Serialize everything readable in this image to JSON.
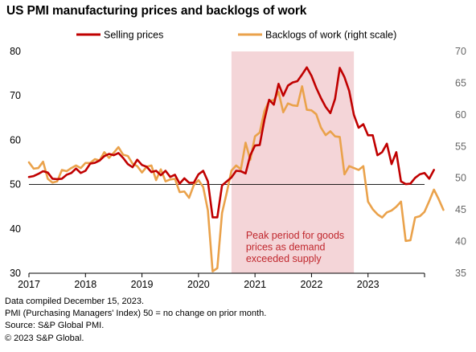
{
  "title": "US PMI manufacturing prices and backlogs of work",
  "footnotes": [
    "Data compiled December 15, 2023.",
    "PMI (Purchasing Managers' Index) 50 =  no change on prior month.",
    "Source: S&P Global PMI.",
    "© 2023 S&P Global."
  ],
  "chart_data": {
    "type": "line",
    "title": "US PMI manufacturing prices and backlogs of work",
    "x_tick_labels": [
      "2017",
      "2018",
      "2019",
      "2020",
      "2021",
      "2022",
      "2023"
    ],
    "x_tick_values": [
      2017,
      2018,
      2019,
      2020,
      2021,
      2022,
      2023
    ],
    "xlim": [
      2017.0,
      2024.0
    ],
    "left_axis": {
      "ylim": [
        30,
        80
      ],
      "ticks": [
        30,
        40,
        50,
        60,
        70,
        80
      ]
    },
    "right_axis": {
      "ylim": [
        35,
        70
      ],
      "ticks": [
        35,
        40,
        45,
        50,
        55,
        60,
        65,
        70
      ]
    },
    "reference_line": {
      "axis": "left",
      "value": 50
    },
    "grid": false,
    "legend_position": "top",
    "shaded_region": {
      "x_range": [
        2020.5833,
        2022.75
      ],
      "label_lines": [
        "Peak period for goods",
        "prices as demand",
        "exceeded supply"
      ],
      "fill": "#f4d5d8",
      "text_color": "#c0272d"
    },
    "series": [
      {
        "name": "Selling prices",
        "axis": "left",
        "color": "#c00000",
        "start": 2017.0,
        "step_months": 1,
        "values": [
          51.7,
          51.9,
          52.4,
          53.0,
          52.7,
          51.3,
          51.2,
          51.3,
          52.2,
          52.6,
          53.6,
          52.6,
          53.1,
          54.7,
          54.9,
          55.4,
          56.4,
          56.9,
          56.6,
          57.1,
          56.0,
          54.6,
          53.9,
          55.6,
          54.4,
          54.0,
          52.8,
          53.1,
          52.1,
          53.1,
          51.7,
          52.2,
          50.2,
          51.4,
          50.4,
          50.4,
          52.3,
          53.1,
          50.7,
          42.6,
          42.6,
          49.8,
          50.7,
          51.6,
          53.1,
          53.0,
          52.5,
          56.6,
          58.8,
          58.9,
          64.6,
          69.1,
          68.0,
          72.7,
          70.0,
          72.3,
          73.0,
          73.3,
          74.8,
          76.4,
          74.5,
          71.8,
          69.5,
          67.5,
          66.1,
          69.3,
          76.3,
          74.2,
          71.1,
          65.7,
          62.8,
          63.6,
          61.1,
          61.1,
          56.6,
          57.3,
          59.2,
          54.6,
          57.3,
          50.7,
          50.1,
          50.2,
          51.5,
          52.3,
          52.6,
          51.3,
          53.3
        ]
      },
      {
        "name": "Backlogs of work (right scale)",
        "axis": "right",
        "color": "#eaa24b",
        "start": 2017.0,
        "step_months": 1,
        "values": [
          52.5,
          51.5,
          51.6,
          52.6,
          49.9,
          49.3,
          49.5,
          51.3,
          51.1,
          51.6,
          52.0,
          51.6,
          52.4,
          52.4,
          53.0,
          52.8,
          54.1,
          53.2,
          54.0,
          54.9,
          53.7,
          53.5,
          52.3,
          51.9,
          50.9,
          51.8,
          52.0,
          49.7,
          51.4,
          49.5,
          49.8,
          49.9,
          47.8,
          47.9,
          46.9,
          48.9,
          49.7,
          48.6,
          44.9,
          35.3,
          35.8,
          44.5,
          47.7,
          51.2,
          52.0,
          51.4,
          55.6,
          52.9,
          56.6,
          57.2,
          60.6,
          62.2,
          62.3,
          63.6,
          60.4,
          61.8,
          61.5,
          61.4,
          64.5,
          60.8,
          60.7,
          60.1,
          58.0,
          56.8,
          57.4,
          56.6,
          56.5,
          50.6,
          51.9,
          51.6,
          51.3,
          51.9,
          46.3,
          45.1,
          44.3,
          43.8,
          44.6,
          44.9,
          45.5,
          46.3,
          40.1,
          40.2,
          43.8,
          44.0,
          44.7,
          46.4,
          48.2,
          46.7,
          45.0
        ]
      }
    ]
  }
}
